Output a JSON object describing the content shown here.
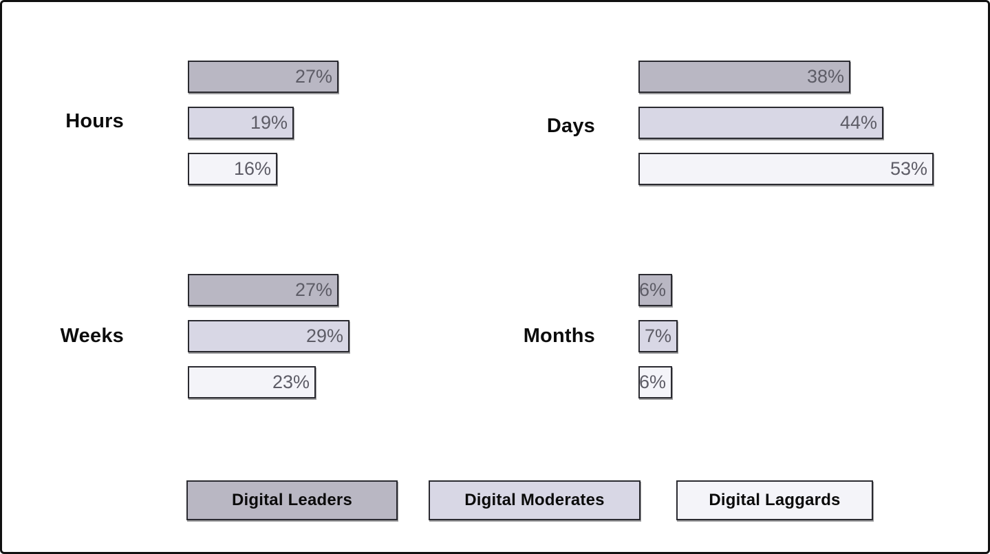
{
  "frame": {
    "background": "#ffffff",
    "border_color": "#111111"
  },
  "chart_data": {
    "type": "bar",
    "orientation": "horizontal",
    "unit": "%",
    "title": "",
    "xlabel": "",
    "ylabel": "",
    "xlim": [
      0,
      55
    ],
    "grid": false,
    "legend_position": "bottom",
    "value_labels_inside_bars": true,
    "value_label_color": "#5d5c66",
    "bar_border_color": "#2a2a30",
    "series": [
      {
        "name": "Digital Leaders",
        "color": "#b9b7c3"
      },
      {
        "name": "Digital Moderates",
        "color": "#d8d7e5"
      },
      {
        "name": "Digital Laggards",
        "color": "#f4f4f9"
      }
    ],
    "groups": [
      {
        "label": "Hours",
        "values": [
          27,
          19,
          16
        ]
      },
      {
        "label": "Days",
        "values": [
          38,
          44,
          53
        ]
      },
      {
        "label": "Weeks",
        "values": [
          27,
          29,
          23
        ]
      },
      {
        "label": "Months",
        "values": [
          6,
          7,
          6
        ]
      }
    ]
  }
}
